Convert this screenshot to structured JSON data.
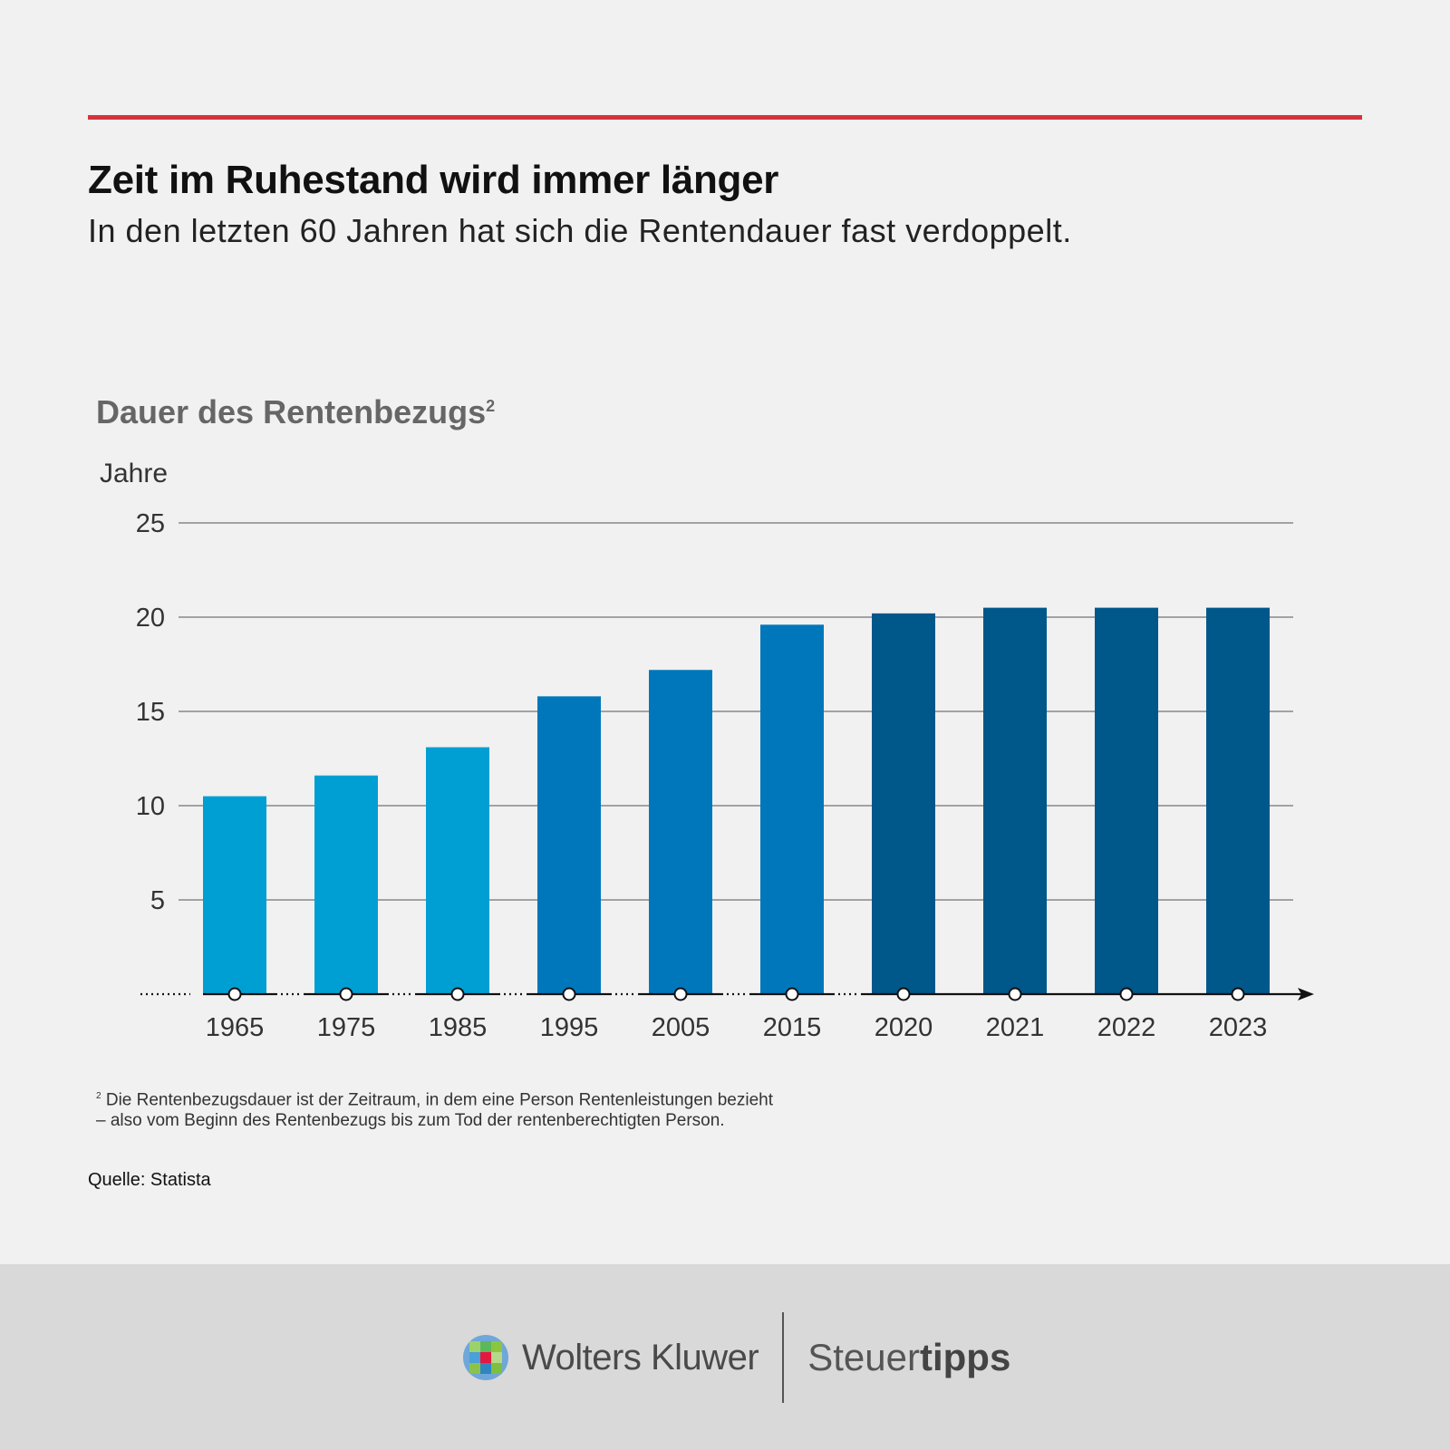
{
  "header": {
    "headline": "Zeit im Ruhestand wird immer länger",
    "subhead": "In den letzten 60 Jahren hat sich die Rentendauer fast verdoppelt."
  },
  "chart_data": {
    "type": "bar",
    "title": "Dauer des Rentenbezugs",
    "title_footnote_mark": "2",
    "ylabel": "Jahre",
    "xlabel": "",
    "ylim": [
      0,
      25
    ],
    "yticks": [
      "25",
      "20",
      "15",
      "10",
      "5"
    ],
    "grid": true,
    "categories": [
      "1965",
      "1975",
      "1985",
      "1995",
      "2005",
      "2015",
      "2020",
      "2021",
      "2022",
      "2023"
    ],
    "values": [
      10.5,
      11.6,
      13.1,
      15.8,
      17.2,
      19.6,
      20.2,
      20.5,
      20.5,
      20.5
    ],
    "colors": [
      "#009fd3",
      "#009fd3",
      "#009fd3",
      "#0077bb",
      "#0077bb",
      "#0077bb",
      "#00578a",
      "#00578a",
      "#00578a",
      "#00578a"
    ]
  },
  "footnote": {
    "mark": "2",
    "line1": "Die Rentenbezugsdauer ist der Zeitraum, in dem eine Person Rentenleistungen bezieht",
    "line2": "– also vom Beginn des Rentenbezugs bis zum Tod der rentenberechtigten Person."
  },
  "source": "Quelle: Statista",
  "footer": {
    "brand1": "Wolters Kluwer",
    "brand2_regular": "Steuer",
    "brand2_bold": "tipps",
    "logo_icon": "wolters-kluwer-logo-icon"
  }
}
